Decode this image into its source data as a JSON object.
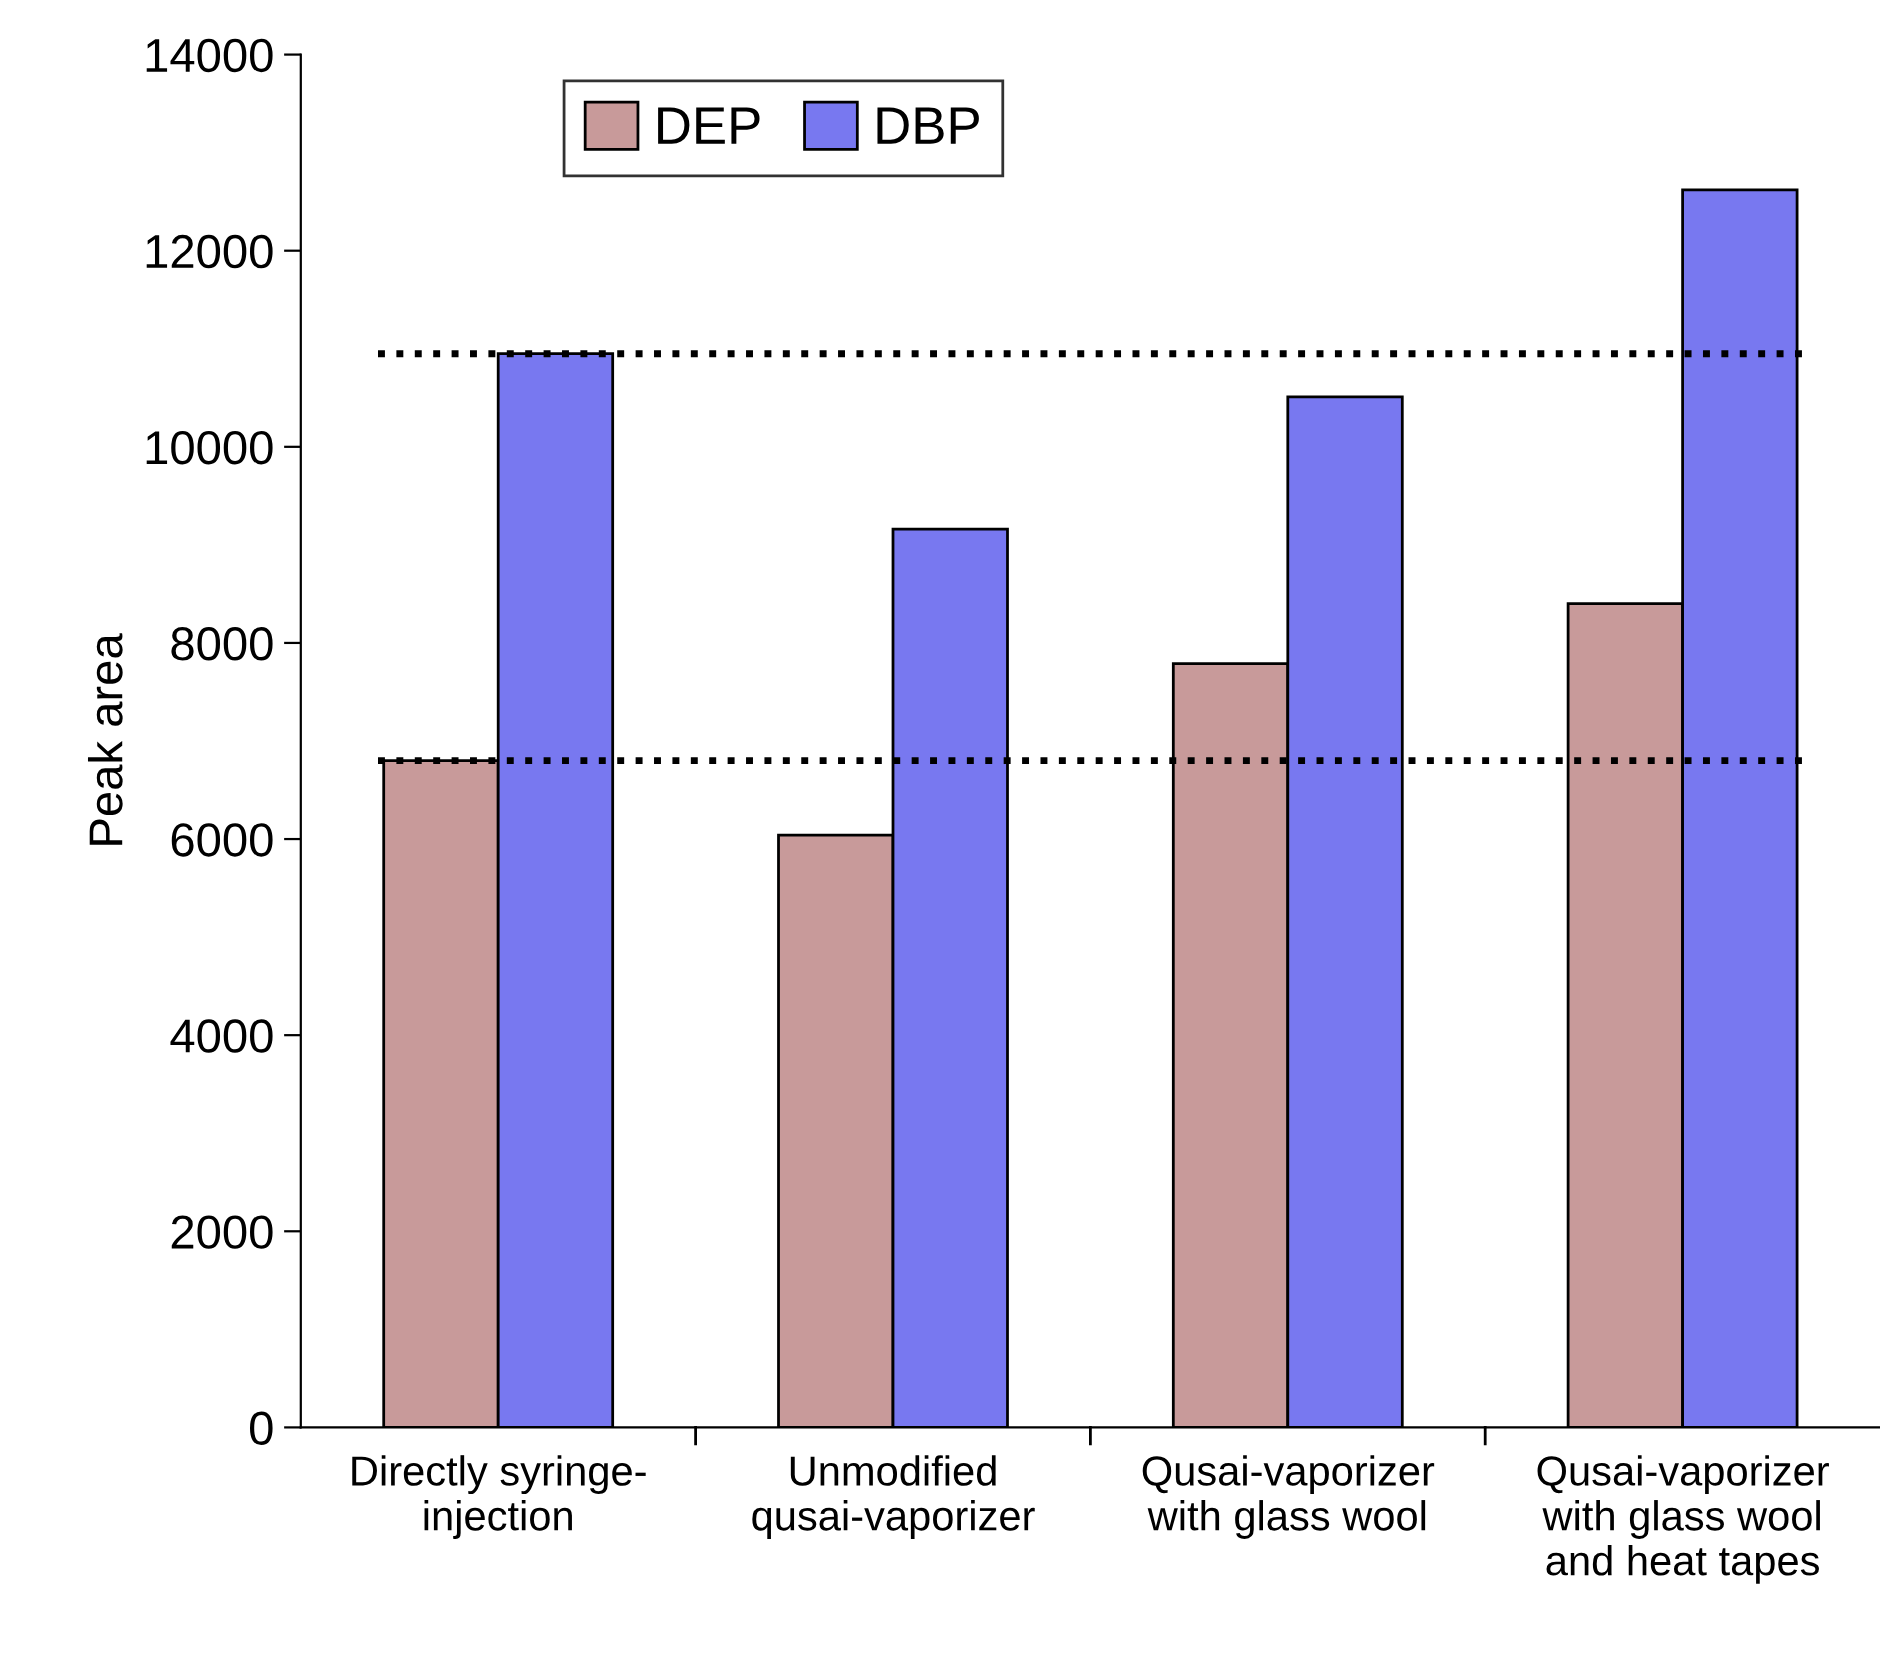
{
  "chart_data": {
    "type": "bar",
    "ylabel": "Peak area",
    "categories": [
      "Directly syringe-\ninjection",
      "Unmodified\nqusai-vaporizer",
      "Qusai-vaporizer\nwith glass wool",
      "Qusai-vaporizer\nwith glass wool\nand heat tapes"
    ],
    "series": [
      {
        "name": "DEP",
        "color": "#c89a9a",
        "values": [
          6800,
          6040,
          7790,
          8400
        ]
      },
      {
        "name": "DBP",
        "color": "#7878f0",
        "values": [
          10950,
          9160,
          10510,
          12620
        ]
      }
    ],
    "ylim": [
      0,
      14000
    ],
    "yticks": [
      0,
      2000,
      4000,
      6000,
      8000,
      10000,
      12000,
      14000
    ],
    "ref_lines": [
      {
        "axis": "y",
        "value": 10950,
        "line_style": "dotted",
        "color": "#000000"
      },
      {
        "axis": "y",
        "value": 6800,
        "line_style": "dotted",
        "color": "#000000"
      }
    ],
    "grid": false,
    "legend": "top left"
  }
}
